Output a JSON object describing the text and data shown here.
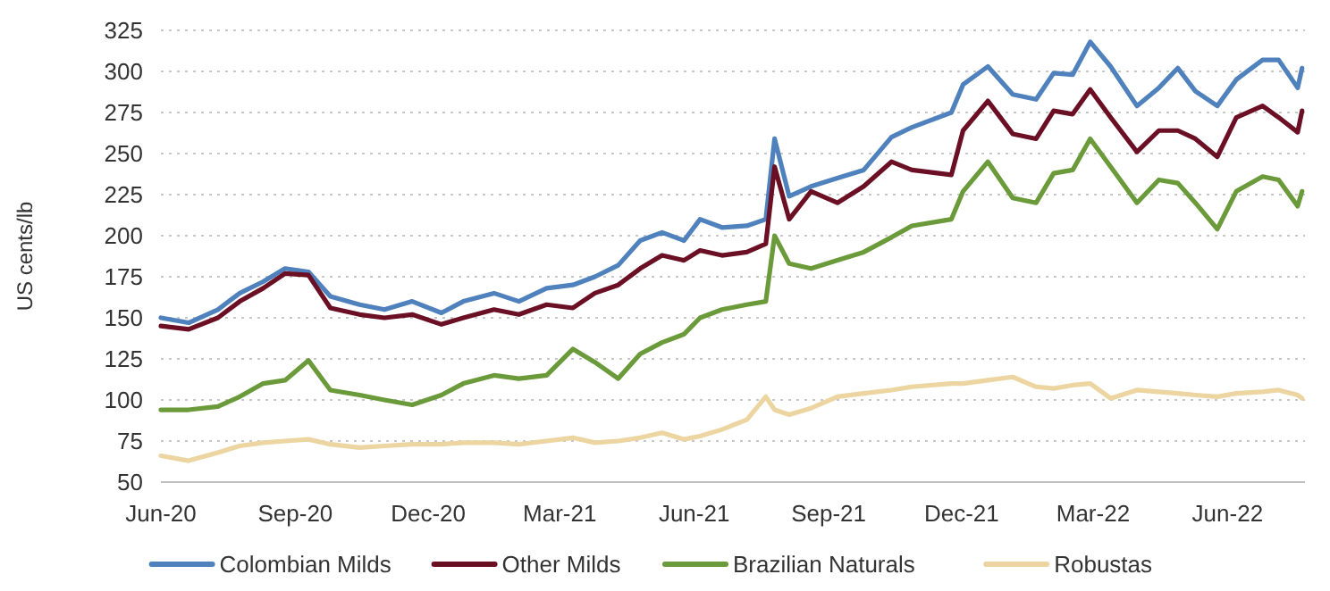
{
  "chart_data": {
    "type": "line",
    "ylabel": "US cents/lb",
    "x": [
      "2020-06-01",
      "2020-06-20",
      "2020-07-10",
      "2020-07-25",
      "2020-08-10",
      "2020-08-25",
      "2020-09-10",
      "2020-09-25",
      "2020-10-15",
      "2020-11-01",
      "2020-11-20",
      "2020-12-10",
      "2020-12-25",
      "2021-01-15",
      "2021-02-01",
      "2021-02-20",
      "2021-03-10",
      "2021-03-25",
      "2021-04-10",
      "2021-04-25",
      "2021-05-10",
      "2021-05-25",
      "2021-06-05",
      "2021-06-20",
      "2021-07-07",
      "2021-07-20",
      "2021-07-26",
      "2021-08-05",
      "2021-08-20",
      "2021-09-07",
      "2021-09-25",
      "2021-10-14",
      "2021-10-28",
      "2021-11-24",
      "2021-12-02",
      "2021-12-19",
      "2022-01-05",
      "2022-01-21",
      "2022-02-02",
      "2022-02-15",
      "2022-02-27",
      "2022-03-13",
      "2022-03-31",
      "2022-04-15",
      "2022-04-28",
      "2022-05-10",
      "2022-05-25",
      "2022-06-07",
      "2022-06-25",
      "2022-07-06",
      "2022-07-19",
      "2022-07-22"
    ],
    "series": [
      {
        "name": "Colombian Milds",
        "color": "#4f81bd",
        "values": [
          150,
          147,
          155,
          165,
          172,
          180,
          178,
          163,
          158,
          155,
          160,
          153,
          160,
          165,
          160,
          168,
          170,
          175,
          182,
          197,
          202,
          197,
          210,
          205,
          206,
          210,
          259,
          224,
          230,
          235,
          240,
          260,
          266,
          275,
          292,
          303,
          286,
          283,
          299,
          298,
          318,
          303,
          279,
          290,
          302,
          288,
          279,
          295,
          307,
          307,
          290,
          302
        ]
      },
      {
        "name": "Other Milds",
        "color": "#6b0f24",
        "values": [
          145,
          143,
          150,
          160,
          168,
          177,
          176,
          156,
          152,
          150,
          152,
          146,
          150,
          155,
          152,
          158,
          156,
          165,
          170,
          180,
          188,
          185,
          191,
          188,
          190,
          195,
          242,
          210,
          227,
          220,
          230,
          245,
          240,
          237,
          264,
          282,
          262,
          259,
          276,
          274,
          289,
          272,
          251,
          264,
          264,
          259,
          248,
          272,
          279,
          272,
          263,
          276
        ]
      },
      {
        "name": "Brazilian Naturals",
        "color": "#6a9a3a",
        "values": [
          94,
          94,
          96,
          102,
          110,
          112,
          124,
          106,
          103,
          100,
          97,
          103,
          110,
          115,
          113,
          115,
          131,
          123,
          113,
          128,
          135,
          140,
          150,
          155,
          158,
          160,
          200,
          183,
          180,
          185,
          190,
          199,
          206,
          210,
          227,
          245,
          223,
          220,
          238,
          240,
          259,
          242,
          220,
          234,
          232,
          220,
          204,
          227,
          236,
          234,
          218,
          227
        ]
      },
      {
        "name": "Robustas",
        "color": "#ecd5a0",
        "values": [
          66,
          63,
          68,
          72,
          74,
          75,
          76,
          73,
          71,
          72,
          73,
          73,
          74,
          74,
          73,
          75,
          77,
          74,
          75,
          77,
          80,
          76,
          78,
          82,
          88,
          102,
          94,
          91,
          95,
          102,
          104,
          106,
          108,
          110,
          110,
          112,
          114,
          108,
          107,
          109,
          110,
          101,
          106,
          105,
          104,
          103,
          102,
          104,
          105,
          106,
          103,
          101
        ]
      }
    ],
    "xlim": [
      "2020-06-01",
      "2022-07-24"
    ],
    "xticks": [
      {
        "value": "2020-06-01",
        "label": "Jun-20"
      },
      {
        "value": "2020-09-01",
        "label": "Sep-20"
      },
      {
        "value": "2020-12-01",
        "label": "Dec-20"
      },
      {
        "value": "2021-03-01",
        "label": "Mar-21"
      },
      {
        "value": "2021-06-01",
        "label": "Jun-21"
      },
      {
        "value": "2021-09-01",
        "label": "Sep-21"
      },
      {
        "value": "2021-12-01",
        "label": "Dec-21"
      },
      {
        "value": "2022-03-01",
        "label": "Mar-22"
      },
      {
        "value": "2022-06-01",
        "label": "Jun-22"
      }
    ],
    "ylim": [
      50,
      325
    ],
    "yticks": [
      50,
      75,
      100,
      125,
      150,
      175,
      200,
      225,
      250,
      275,
      300,
      325
    ],
    "grid": "y",
    "legend": "bottom",
    "line_style": "solid",
    "marker": "none"
  }
}
